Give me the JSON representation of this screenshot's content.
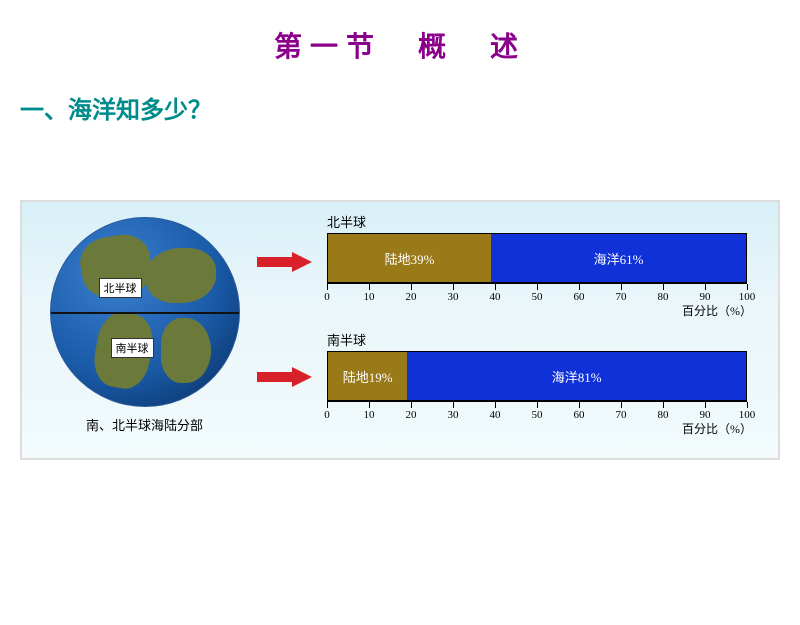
{
  "header": {
    "main_title": "第一节　概　述",
    "subtitle": "一、海洋知多少？"
  },
  "globe": {
    "north_label": "北半球",
    "south_label": "南半球",
    "caption": "南、北半球海陆分部",
    "ocean_gradient": [
      "#3a7fd0",
      "#1a5ba8",
      "#062a5a"
    ],
    "land_color": "#6b7a3a"
  },
  "charts": {
    "north": {
      "title": "北半球",
      "segments": [
        {
          "label": "陆地39%",
          "value": 39,
          "color": "#9a7a18"
        },
        {
          "label": "海洋61%",
          "value": 61,
          "color": "#1030d8"
        }
      ]
    },
    "south": {
      "title": "南半球",
      "segments": [
        {
          "label": "陆地19%",
          "value": 19,
          "color": "#9a7a18"
        },
        {
          "label": "海洋81%",
          "value": 81,
          "color": "#1030d8"
        }
      ]
    },
    "axis": {
      "min": 0,
      "max": 100,
      "step": 10,
      "label": "百分比（%）"
    }
  },
  "style": {
    "title_color": "#8b008b",
    "subtitle_color": "#008b8b",
    "arrow_color": "#d82028",
    "panel_border": "#dddddd",
    "panel_bg_top": "#d8f0f8",
    "panel_bg_bottom": "#f2fafc"
  }
}
